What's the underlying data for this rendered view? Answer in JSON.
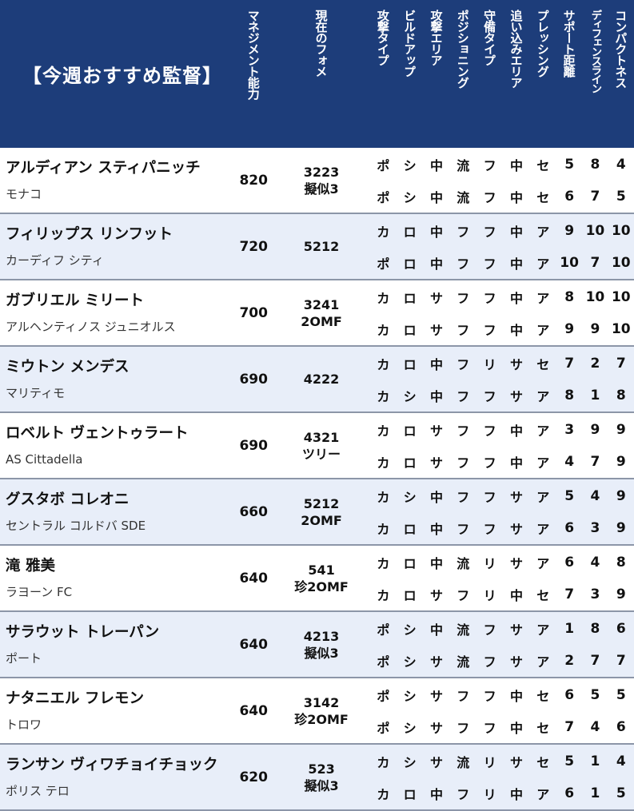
{
  "header": {
    "title": "【今週おすすめ監督】",
    "columns": [
      "マネジメント能力",
      "現在のフォメ",
      "攻撃タイプ",
      "ビルドアップ",
      "攻撃エリア",
      "ポジショニング",
      "守備タイプ",
      "追い込みエリア",
      "プレッシング",
      "サポート距離",
      "ディフェンスライン",
      "コンパクトネス"
    ]
  },
  "managers": [
    {
      "name": "アルディアン スティパニッチ",
      "club": "モナコ",
      "mgr": "820",
      "form1": "3223",
      "form2": "擬似3",
      "t1": [
        "ポ",
        "シ",
        "中",
        "流",
        "フ",
        "中",
        "セ",
        "5",
        "8",
        "4"
      ],
      "t2": [
        "ポ",
        "シ",
        "中",
        "流",
        "フ",
        "中",
        "セ",
        "6",
        "7",
        "5"
      ]
    },
    {
      "name": "フィリップス リンフット",
      "club": "カーディフ シティ",
      "mgr": "720",
      "form1": "5212",
      "form2": "",
      "t1": [
        "カ",
        "ロ",
        "中",
        "フ",
        "フ",
        "中",
        "ア",
        "9",
        "10",
        "10"
      ],
      "t2": [
        "ポ",
        "ロ",
        "中",
        "フ",
        "フ",
        "中",
        "ア",
        "10",
        "7",
        "10"
      ]
    },
    {
      "name": "ガブリエル ミリート",
      "club": "アルヘンティノス ジュニオルス",
      "mgr": "700",
      "form1": "3241",
      "form2": "2OMF",
      "t1": [
        "カ",
        "ロ",
        "サ",
        "フ",
        "フ",
        "中",
        "ア",
        "8",
        "10",
        "10"
      ],
      "t2": [
        "カ",
        "ロ",
        "サ",
        "フ",
        "フ",
        "中",
        "ア",
        "9",
        "9",
        "10"
      ]
    },
    {
      "name": "ミウトン メンデス",
      "club": "マリティモ",
      "mgr": "690",
      "form1": "4222",
      "form2": "",
      "t1": [
        "カ",
        "ロ",
        "中",
        "フ",
        "リ",
        "サ",
        "セ",
        "7",
        "2",
        "7"
      ],
      "t2": [
        "カ",
        "シ",
        "中",
        "フ",
        "フ",
        "サ",
        "ア",
        "8",
        "1",
        "8"
      ]
    },
    {
      "name": "ロベルト ヴェントゥラート",
      "club": "AS Cittadella",
      "mgr": "690",
      "form1": "4321",
      "form2": "ツリー",
      "t1": [
        "カ",
        "ロ",
        "サ",
        "フ",
        "フ",
        "中",
        "ア",
        "3",
        "9",
        "9"
      ],
      "t2": [
        "カ",
        "ロ",
        "サ",
        "フ",
        "フ",
        "中",
        "ア",
        "4",
        "7",
        "9"
      ]
    },
    {
      "name": "グスタボ コレオニ",
      "club": "セントラル コルドバ SDE",
      "mgr": "660",
      "form1": "5212",
      "form2": "2OMF",
      "t1": [
        "カ",
        "シ",
        "中",
        "フ",
        "フ",
        "サ",
        "ア",
        "5",
        "4",
        "9"
      ],
      "t2": [
        "カ",
        "ロ",
        "中",
        "フ",
        "フ",
        "サ",
        "ア",
        "6",
        "3",
        "9"
      ]
    },
    {
      "name": "滝 雅美",
      "club": "ラヨーン FC",
      "mgr": "640",
      "form1": "541",
      "form2": "珍2OMF",
      "t1": [
        "カ",
        "ロ",
        "中",
        "流",
        "リ",
        "サ",
        "ア",
        "6",
        "4",
        "8"
      ],
      "t2": [
        "カ",
        "ロ",
        "サ",
        "フ",
        "リ",
        "中",
        "セ",
        "7",
        "3",
        "9"
      ]
    },
    {
      "name": "サラウット トレーパン",
      "club": "ポート",
      "mgr": "640",
      "form1": "4213",
      "form2": "擬似3",
      "t1": [
        "ポ",
        "シ",
        "中",
        "流",
        "フ",
        "サ",
        "ア",
        "1",
        "8",
        "6"
      ],
      "t2": [
        "ポ",
        "シ",
        "サ",
        "流",
        "フ",
        "サ",
        "ア",
        "2",
        "7",
        "7"
      ]
    },
    {
      "name": "ナタニエル フレモン",
      "club": "トロワ",
      "mgr": "640",
      "form1": "3142",
      "form2": "珍2OMF",
      "t1": [
        "ポ",
        "シ",
        "サ",
        "フ",
        "フ",
        "中",
        "セ",
        "6",
        "5",
        "5"
      ],
      "t2": [
        "ポ",
        "シ",
        "サ",
        "フ",
        "フ",
        "中",
        "セ",
        "7",
        "4",
        "6"
      ]
    },
    {
      "name": "ランサン ヴィワチョイチョック",
      "club": "ポリス テロ",
      "mgr": "620",
      "form1": "523",
      "form2": "擬似3",
      "t1": [
        "カ",
        "シ",
        "サ",
        "流",
        "リ",
        "サ",
        "セ",
        "5",
        "1",
        "4"
      ],
      "t2": [
        "カ",
        "ロ",
        "中",
        "フ",
        "リ",
        "中",
        "ア",
        "6",
        "1",
        "5"
      ]
    }
  ]
}
